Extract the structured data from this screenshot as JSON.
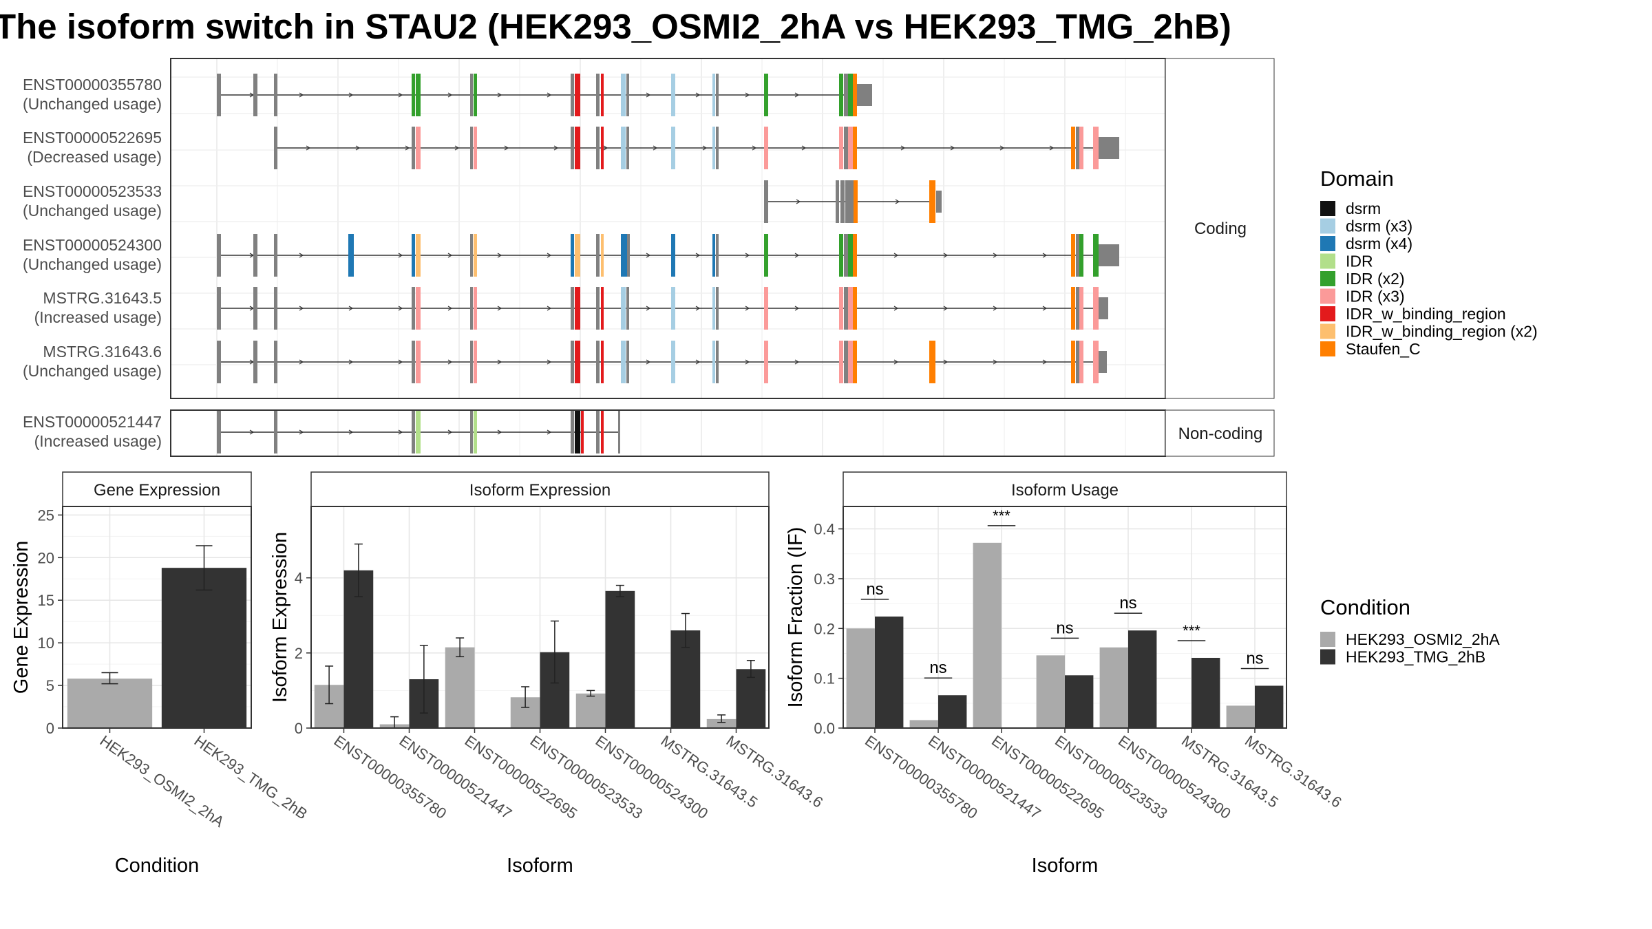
{
  "title": "The isoform switch in STAU2 (HEK293_OSMI2_2hA vs HEK293_TMG_2hB)",
  "colors": {
    "dsrm": "#111111",
    "dsrm (x3)": "#a6cee3",
    "dsrm (x4)": "#1f78b4",
    "IDR": "#b2df8a",
    "IDR (x2)": "#33a02c",
    "IDR (x3)": "#fb9a99",
    "IDR_w_binding_region": "#e31a1c",
    "IDR_w_binding_region (x2)": "#fdbf6f",
    "Staufen_C": "#ff7f00",
    "exon": "#808080",
    "HEK293_OSMI2_2hA": "#aaaaaa",
    "HEK293_TMG_2hB": "#333333"
  },
  "structure": {
    "coding_label": "Coding",
    "noncoding_label": "Non-coding",
    "coding": [
      {
        "id": "ENST00000355780",
        "usage": "(Unchanged usage)"
      },
      {
        "id": "ENST00000522695",
        "usage": "(Decreased usage)"
      },
      {
        "id": "ENST00000523533",
        "usage": "(Unchanged usage)"
      },
      {
        "id": "ENST00000524300",
        "usage": "(Unchanged usage)"
      },
      {
        "id": "MSTRG.31643.5",
        "usage": "(Increased usage)"
      },
      {
        "id": "MSTRG.31643.6",
        "usage": "(Unchanged usage)"
      }
    ],
    "noncoding": [
      {
        "id": "ENST00000521447",
        "usage": "(Increased usage)"
      }
    ]
  },
  "legend_domain": {
    "title": "Domain",
    "items": [
      "dsrm",
      "dsrm (x3)",
      "dsrm (x4)",
      "IDR",
      "IDR (x2)",
      "IDR (x3)",
      "IDR_w_binding_region",
      "IDR_w_binding_region (x2)",
      "Staufen_C"
    ]
  },
  "legend_condition": {
    "title": "Condition",
    "items": [
      "HEK293_OSMI2_2hA",
      "HEK293_TMG_2hB"
    ]
  },
  "chart_data": [
    {
      "type": "bar",
      "title": "Gene Expression",
      "xlabel": "Condition",
      "ylabel": "Gene Expression",
      "ylim": [
        0,
        26
      ],
      "yticks": [
        0,
        5,
        10,
        15,
        20,
        25
      ],
      "categories": [
        "HEK293_OSMI2_2hA",
        "HEK293_TMG_2hB"
      ],
      "values": [
        5.8,
        18.8
      ],
      "errors": [
        [
          5.2,
          6.5
        ],
        [
          16.2,
          21.4
        ]
      ]
    },
    {
      "type": "bar",
      "title": "Isoform Expression",
      "xlabel": "Isoform",
      "ylabel": "Isoform Expression",
      "ylim": [
        0,
        5.9
      ],
      "yticks": [
        0,
        2,
        4
      ],
      "categories": [
        "ENST00000355780",
        "ENST00000521447",
        "ENST00000522695",
        "ENST00000523533",
        "ENST00000524300",
        "MSTRG.31643.5",
        "MSTRG.31643.6"
      ],
      "series": [
        {
          "name": "HEK293_OSMI2_2hA",
          "values": [
            1.15,
            0.1,
            2.15,
            0.82,
            0.92,
            0.0,
            0.24
          ],
          "errors": [
            [
              0.65,
              1.65
            ],
            [
              0.0,
              0.3
            ],
            [
              1.9,
              2.4
            ],
            [
              0.55,
              1.1
            ],
            [
              0.85,
              1.0
            ],
            [
              0,
              0
            ],
            [
              0.15,
              0.35
            ]
          ]
        },
        {
          "name": "HEK293_TMG_2hB",
          "values": [
            4.2,
            1.3,
            0.0,
            2.02,
            3.65,
            2.6,
            1.57
          ],
          "errors": [
            [
              3.5,
              4.9
            ],
            [
              0.4,
              2.2
            ],
            [
              0,
              0
            ],
            [
              1.2,
              2.85
            ],
            [
              3.5,
              3.8
            ],
            [
              2.15,
              3.05
            ],
            [
              1.35,
              1.8
            ]
          ]
        }
      ]
    },
    {
      "type": "bar",
      "title": "Isoform Usage",
      "xlabel": "Isoform",
      "ylabel": "Isoform Fraction (IF)",
      "ylim": [
        0,
        0.445
      ],
      "yticks": [
        0.0,
        0.1,
        0.2,
        0.3,
        0.4
      ],
      "categories": [
        "ENST00000355780",
        "ENST00000521447",
        "ENST00000522695",
        "ENST00000523533",
        "ENST00000524300",
        "MSTRG.31643.5",
        "MSTRG.31643.6"
      ],
      "series": [
        {
          "name": "HEK293_OSMI2_2hA",
          "values": [
            0.2,
            0.016,
            0.372,
            0.146,
            0.162,
            0.0,
            0.045
          ]
        },
        {
          "name": "HEK293_TMG_2hB",
          "values": [
            0.224,
            0.066,
            0.0,
            0.106,
            0.196,
            0.141,
            0.085
          ]
        }
      ],
      "significance": [
        "ns",
        "ns",
        "***",
        "ns",
        "ns",
        "***",
        "ns"
      ]
    }
  ]
}
